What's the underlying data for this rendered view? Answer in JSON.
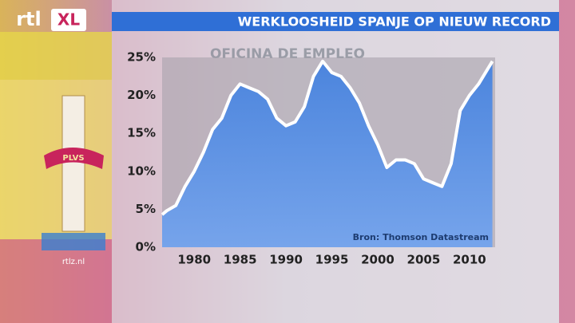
{
  "brand": {
    "logo": "rtl",
    "badge": "XL",
    "site": "rtlz.nl"
  },
  "scene": {
    "sign": "OFICINA DE EMPLEO",
    "motto": "PLVS"
  },
  "chart_data": {
    "type": "area",
    "title": "WERKLOOSHEID SPANJE OP NIEUW RECORD",
    "source": "Bron: Thomson Datastream",
    "x": [
      1976.5,
      1977,
      1978,
      1979,
      1980,
      1981,
      1982,
      1983,
      1984,
      1985,
      1986,
      1987,
      1988,
      1989,
      1990,
      1991,
      1992,
      1993,
      1994,
      1995,
      1996,
      1997,
      1998,
      1999,
      2000,
      2001,
      2002,
      2003,
      2004,
      2005,
      2006,
      2007,
      2008,
      2009,
      2010,
      2011,
      2012,
      2012.5
    ],
    "values": [
      4.3,
      4.8,
      5.5,
      8,
      10,
      12.5,
      15.5,
      17,
      20,
      21.5,
      21,
      20.5,
      19.5,
      17,
      16,
      16.5,
      18.5,
      22.5,
      24.5,
      23,
      22.5,
      21,
      19,
      16,
      13.5,
      10.5,
      11.5,
      11.5,
      11,
      9,
      8.5,
      8,
      11,
      18,
      20,
      21.5,
      23.5,
      24.5
    ],
    "color": "#3f7fe0",
    "line_color": "#ffffff",
    "xlim": [
      1976.5,
      2012.8
    ],
    "xticks": [
      1980,
      1985,
      1990,
      1995,
      2000,
      2005,
      2010
    ],
    "ylim": [
      0,
      25
    ],
    "yticks": [
      {
        "value": 0,
        "label": "0%"
      },
      {
        "value": 5,
        "label": "5%"
      },
      {
        "value": 10,
        "label": "10%"
      },
      {
        "value": 15,
        "label": "15%"
      },
      {
        "value": 20,
        "label": "20%"
      },
      {
        "value": 25,
        "label": "25%"
      }
    ]
  }
}
